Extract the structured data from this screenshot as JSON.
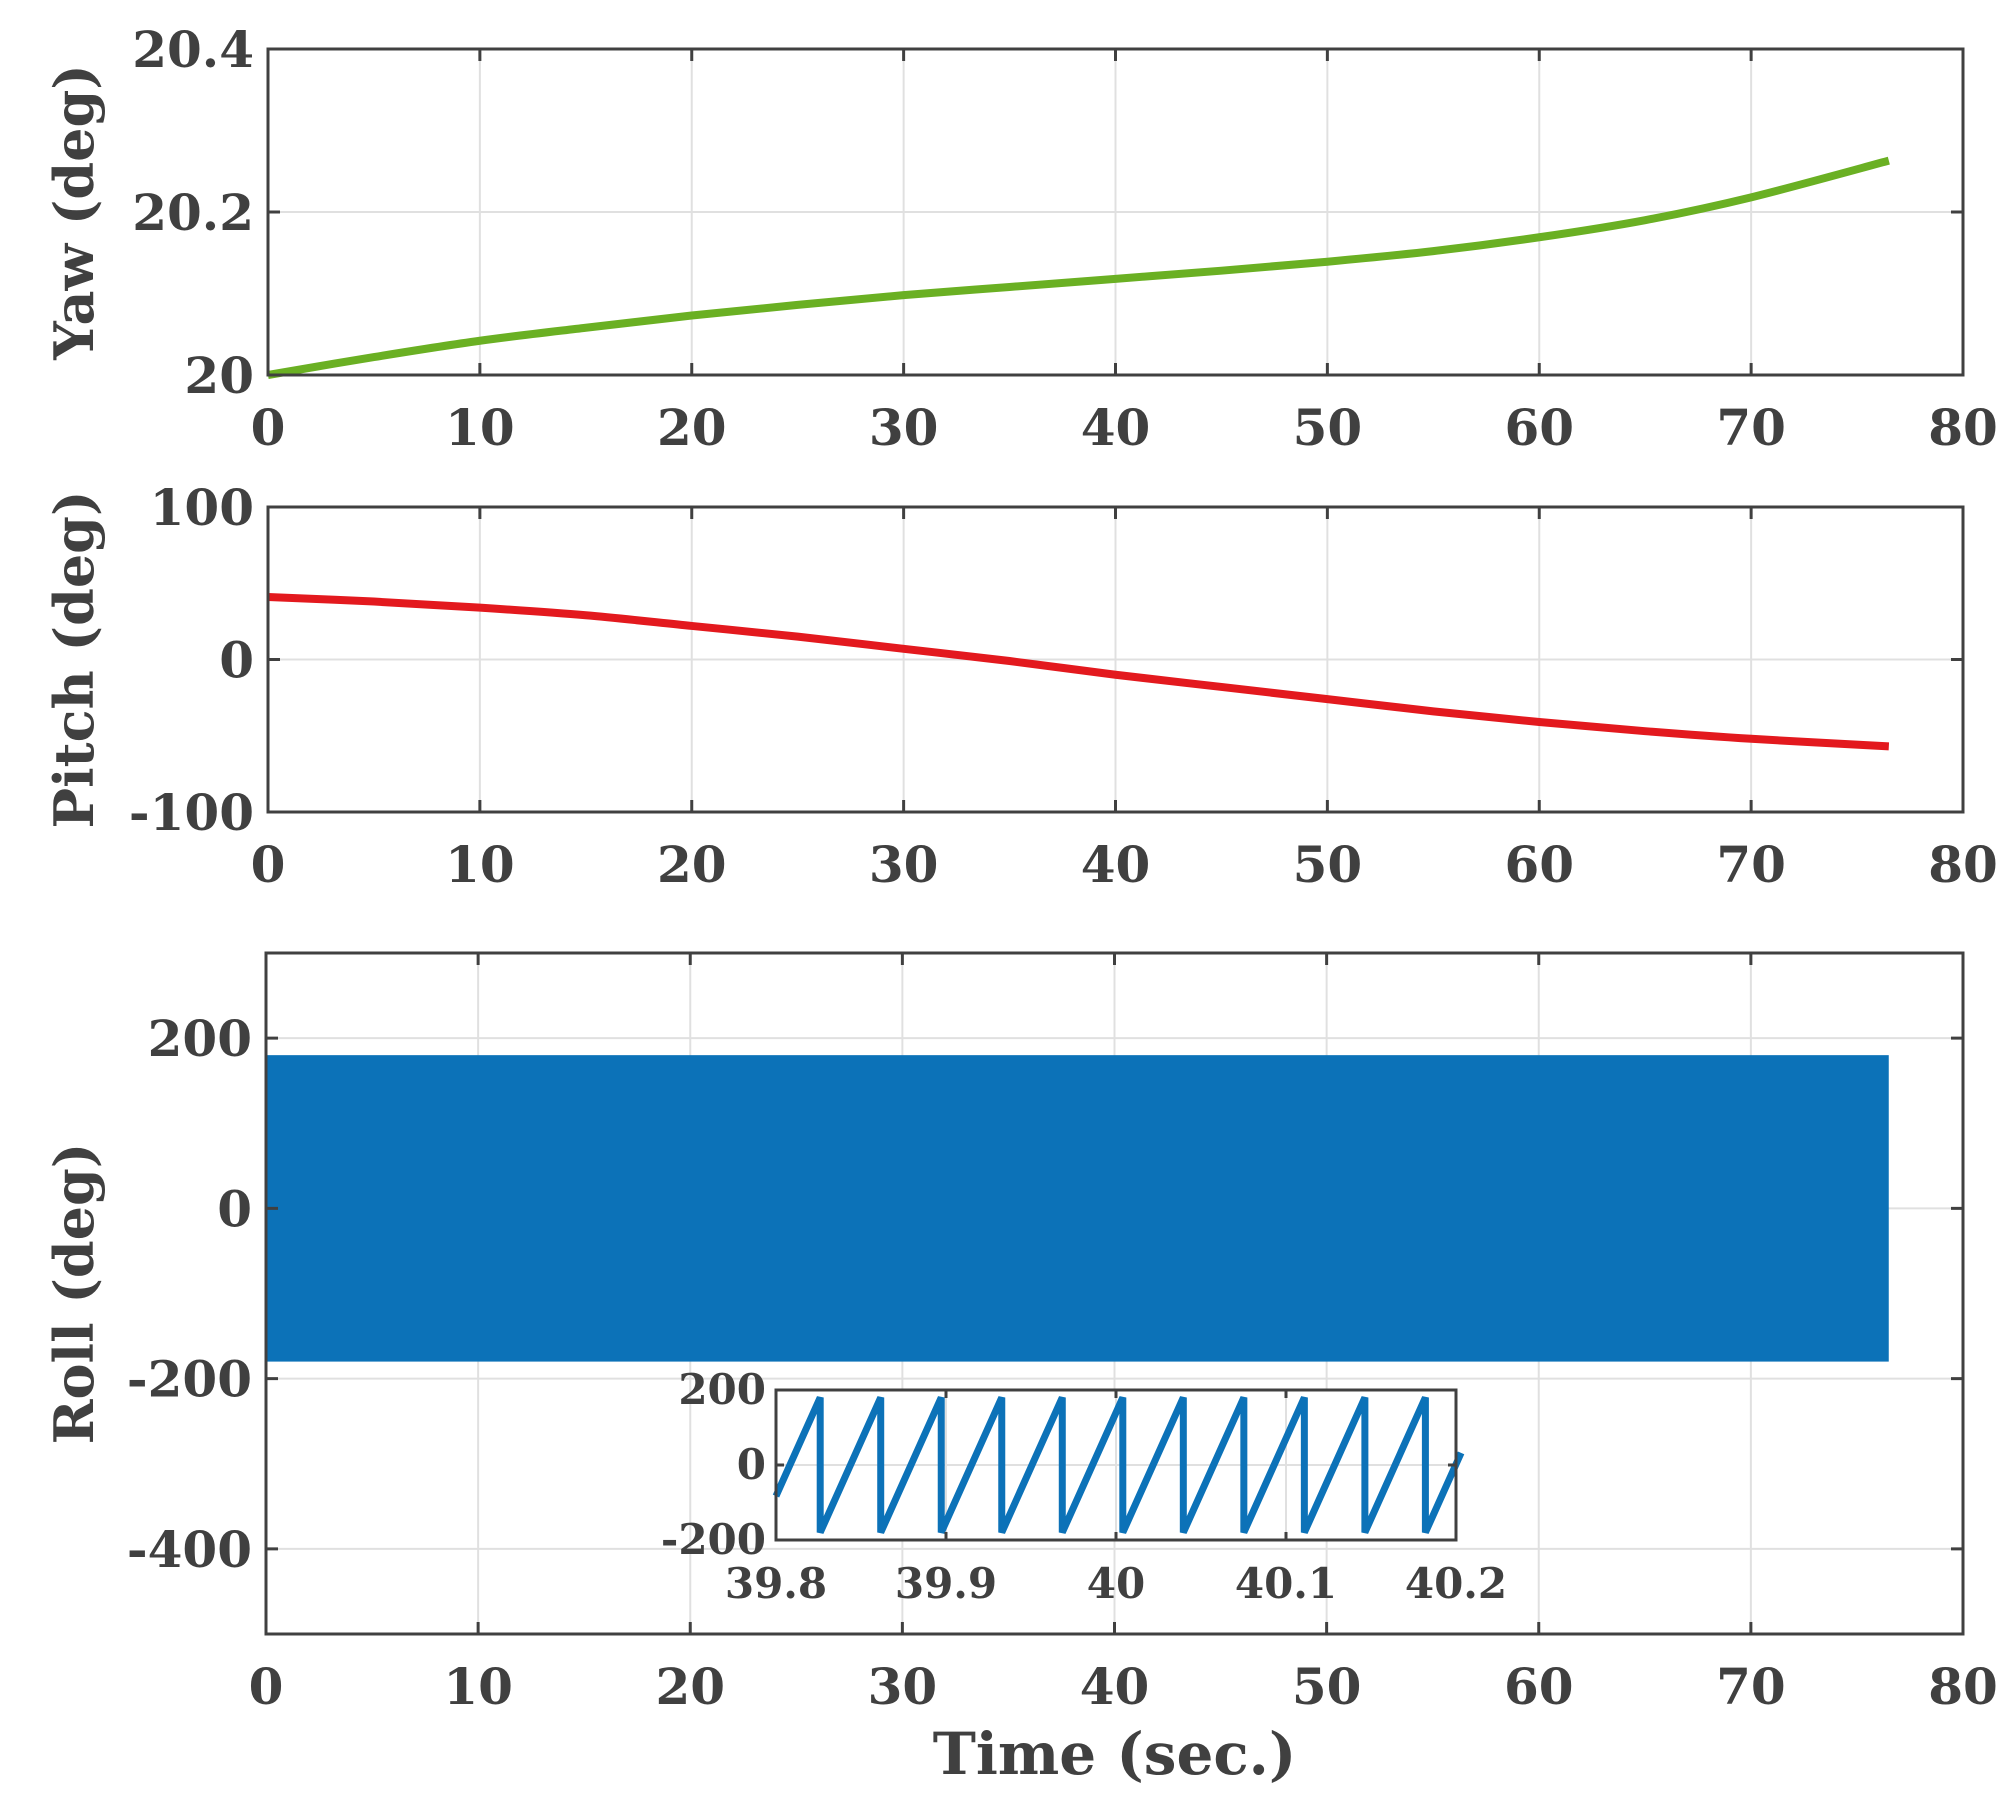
{
  "chart_data": [
    {
      "type": "line",
      "title": "",
      "xlabel": "",
      "ylabel": "Yaw (deg)",
      "xlim": [
        0,
        80
      ],
      "ylim": [
        20,
        20.4
      ],
      "xticks": [
        "0",
        "10",
        "20",
        "30",
        "40",
        "50",
        "60",
        "70",
        "80"
      ],
      "yticks": [
        "20",
        "20.2",
        "20.4"
      ],
      "grid": true,
      "series": [
        {
          "name": "Yaw",
          "color": "#6ab023",
          "x": [
            0,
            5,
            10,
            15,
            20,
            25,
            30,
            35,
            40,
            45,
            50,
            55,
            60,
            65,
            70,
            76.5
          ],
          "values": [
            20.0,
            20.022,
            20.042,
            20.058,
            20.073,
            20.086,
            20.098,
            20.108,
            20.118,
            20.128,
            20.139,
            20.152,
            20.169,
            20.19,
            20.218,
            20.263
          ]
        }
      ]
    },
    {
      "type": "line",
      "title": "",
      "xlabel": "",
      "ylabel": "Pitch (deg)",
      "xlim": [
        0,
        80
      ],
      "ylim": [
        -100,
        100
      ],
      "xticks": [
        "0",
        "10",
        "20",
        "30",
        "40",
        "50",
        "60",
        "70",
        "80"
      ],
      "yticks": [
        "-100",
        "0",
        "100"
      ],
      "grid": true,
      "series": [
        {
          "name": "Pitch",
          "color": "#e3191e",
          "x": [
            0,
            5,
            10,
            15,
            20,
            25,
            30,
            35,
            40,
            45,
            50,
            55,
            60,
            65,
            70,
            76.5
          ],
          "values": [
            41,
            38,
            34,
            29,
            22,
            15,
            7,
            -1,
            -10,
            -18,
            -26,
            -34,
            -41,
            -47,
            -52,
            -57
          ]
        }
      ]
    },
    {
      "type": "line",
      "title": "",
      "xlabel": "Time (sec.)",
      "ylabel": "Roll (deg)",
      "xlim": [
        0,
        80
      ],
      "ylim": [
        -500,
        300
      ],
      "xticks": [
        "0",
        "10",
        "20",
        "30",
        "40",
        "50",
        "60",
        "70",
        "80"
      ],
      "yticks": [
        "-400",
        "-200",
        "0",
        "200"
      ],
      "grid": true,
      "series": [
        {
          "name": "Roll",
          "color": "#0c72b8",
          "pattern": "sawtooth",
          "x_range": [
            0,
            76.5
          ],
          "y_range": [
            -180,
            180
          ]
        }
      ],
      "inset": {
        "type": "line",
        "xlim": [
          39.8,
          40.2
        ],
        "ylim": [
          -200,
          200
        ],
        "xticks": [
          "39.8",
          "39.9",
          "40",
          "40.1",
          "40.2"
        ],
        "yticks": [
          "-200",
          "0",
          "200"
        ],
        "series": [
          {
            "name": "Roll (zoom)",
            "color": "#0c72b8",
            "x_start": 39.8,
            "x_end": 40.203,
            "first_peak": 39.826,
            "period": 0.0356,
            "min": -180,
            "max": 180
          }
        ]
      }
    }
  ]
}
